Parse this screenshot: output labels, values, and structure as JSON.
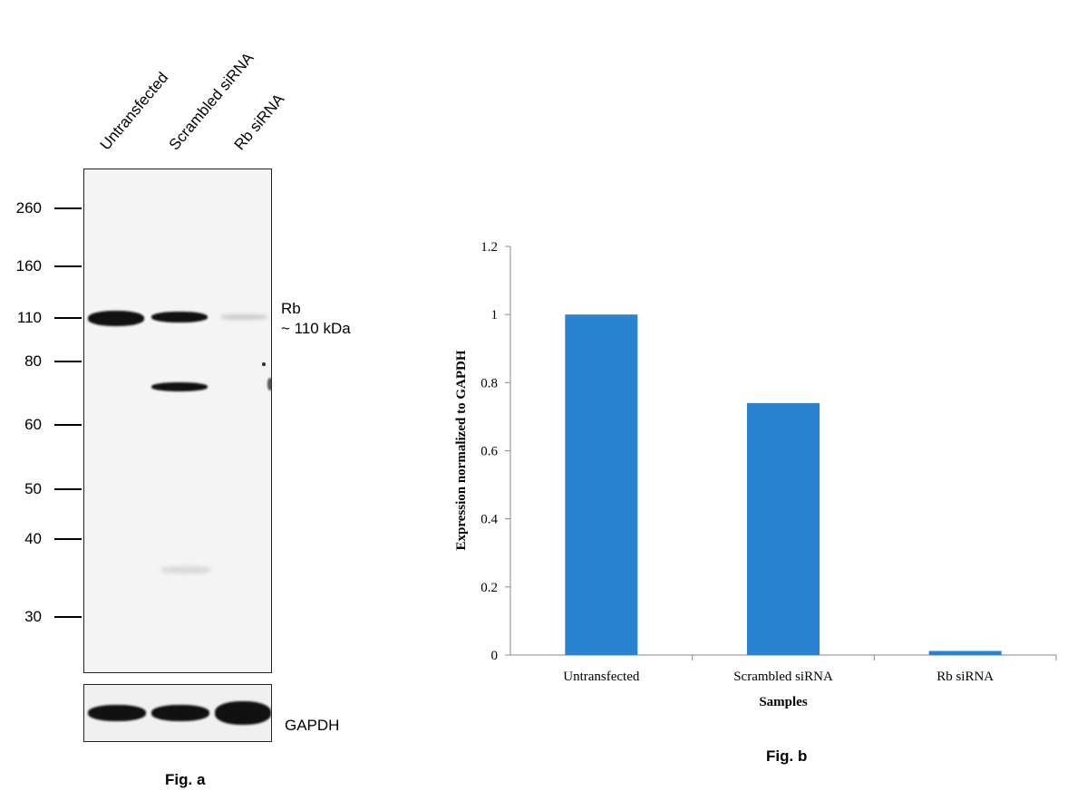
{
  "fig_a": {
    "lanes": [
      "Untransfected",
      "Scrambled siRNA",
      "Rb siRNA"
    ],
    "markers": [
      "260",
      "160",
      "110",
      "80",
      "60",
      "50",
      "40",
      "30"
    ],
    "target_name": "Rb",
    "target_size": "~ 110 kDa",
    "loading_control": "GAPDH",
    "caption": "Fig. a"
  },
  "chart_data": {
    "type": "bar",
    "categories": [
      "Untransfected",
      "Scrambled siRNA",
      "Rb siRNA"
    ],
    "values": [
      1.0,
      0.74,
      0.012
    ],
    "xlabel": "Samples",
    "ylabel": "Expression normalized to GAPDH",
    "ylim": [
      0,
      1.2
    ],
    "yticks": [
      "0",
      "0.2",
      "0.4",
      "0.6",
      "0.8",
      "1",
      "1.2"
    ],
    "bar_color": "#2a82d2",
    "grid": false,
    "caption": "Fig. b"
  }
}
